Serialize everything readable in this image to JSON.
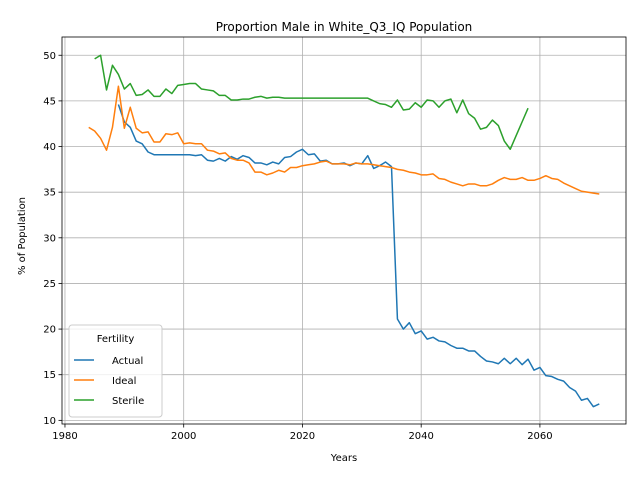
{
  "chart_data": {
    "type": "line",
    "title": "Proportion Male in White_Q3_IQ Population",
    "xlabel": "Years",
    "ylabel": "% of Population",
    "xlim": [
      1979.5,
      2074.5
    ],
    "ylim": [
      9.6,
      52.0
    ],
    "xticks": [
      1980,
      2000,
      2020,
      2040,
      2060
    ],
    "yticks": [
      10,
      15,
      20,
      25,
      30,
      35,
      40,
      45,
      50
    ],
    "grid": true,
    "legend": {
      "title": "Fertility",
      "placement": "lower-left"
    },
    "series": [
      {
        "name": "Actual",
        "color": "#1f77b4",
        "x": [
          1989,
          1990,
          1991,
          1992,
          1993,
          1994,
          1995,
          1996,
          1997,
          1998,
          1999,
          2000,
          2001,
          2002,
          2003,
          2004,
          2005,
          2006,
          2007,
          2008,
          2009,
          2010,
          2011,
          2012,
          2013,
          2014,
          2015,
          2016,
          2017,
          2018,
          2019,
          2020,
          2021,
          2022,
          2023,
          2024,
          2025,
          2026,
          2027,
          2028,
          2029,
          2030,
          2031,
          2032,
          2033,
          2034,
          2035,
          2036,
          2037,
          2038,
          2039,
          2040,
          2041,
          2042,
          2043,
          2044,
          2045,
          2046,
          2047,
          2048,
          2049,
          2050,
          2051,
          2052,
          2053,
          2054,
          2055,
          2056,
          2057,
          2058,
          2059,
          2060,
          2061,
          2062,
          2063,
          2064,
          2065,
          2066,
          2067,
          2068,
          2069,
          2070
        ],
        "y": [
          44.6,
          42.7,
          42.1,
          40.6,
          40.3,
          39.4,
          39.1,
          39.1,
          39.1,
          39.1,
          39.1,
          39.1,
          39.1,
          39.0,
          39.1,
          38.5,
          38.4,
          38.7,
          38.4,
          38.9,
          38.6,
          39.0,
          38.8,
          38.2,
          38.2,
          38.0,
          38.3,
          38.1,
          38.8,
          38.9,
          39.4,
          39.7,
          39.1,
          39.2,
          38.4,
          38.5,
          38.1,
          38.1,
          38.2,
          37.9,
          38.2,
          38.1,
          39.0,
          37.6,
          37.9,
          38.3,
          37.8,
          21.1,
          20.0,
          20.7,
          19.5,
          19.8,
          18.9,
          19.1,
          18.7,
          18.6,
          18.2,
          17.9,
          17.9,
          17.6,
          17.6,
          17.0,
          16.5,
          16.4,
          16.2,
          16.8,
          16.2,
          16.8,
          16.1,
          16.7,
          15.5,
          15.8,
          14.9,
          14.8,
          14.5,
          14.3,
          13.6,
          13.2,
          12.2,
          12.4,
          11.5,
          11.8
        ]
      },
      {
        "name": "Ideal",
        "color": "#ff7f0e",
        "x": [
          1984,
          1985,
          1986,
          1987,
          1988,
          1989,
          1990,
          1991,
          1992,
          1993,
          1994,
          1995,
          1996,
          1997,
          1998,
          1999,
          2000,
          2001,
          2002,
          2003,
          2004,
          2005,
          2006,
          2007,
          2008,
          2009,
          2010,
          2011,
          2012,
          2013,
          2014,
          2015,
          2016,
          2017,
          2018,
          2019,
          2020,
          2021,
          2022,
          2023,
          2024,
          2025,
          2026,
          2027,
          2028,
          2029,
          2030,
          2031,
          2032,
          2033,
          2034,
          2035,
          2036,
          2037,
          2038,
          2039,
          2040,
          2041,
          2042,
          2043,
          2044,
          2045,
          2046,
          2047,
          2048,
          2049,
          2050,
          2051,
          2052,
          2053,
          2054,
          2055,
          2056,
          2057,
          2058,
          2059,
          2060,
          2061,
          2062,
          2063,
          2064,
          2065,
          2066,
          2067,
          2068,
          2069,
          2070
        ],
        "y": [
          42.1,
          41.7,
          40.9,
          39.6,
          42.1,
          46.6,
          42.0,
          44.3,
          42.0,
          41.5,
          41.6,
          40.5,
          40.5,
          41.4,
          41.3,
          41.5,
          40.3,
          40.4,
          40.3,
          40.3,
          39.6,
          39.5,
          39.2,
          39.3,
          38.7,
          38.5,
          38.5,
          38.2,
          37.2,
          37.2,
          36.9,
          37.1,
          37.4,
          37.2,
          37.7,
          37.7,
          37.9,
          38.0,
          38.1,
          38.3,
          38.4,
          38.1,
          38.1,
          38.1,
          38.0,
          38.2,
          38.1,
          38.1,
          38.0,
          37.9,
          37.8,
          37.7,
          37.5,
          37.4,
          37.2,
          37.1,
          36.9,
          36.9,
          37.0,
          36.5,
          36.4,
          36.1,
          35.9,
          35.7,
          35.9,
          35.9,
          35.7,
          35.7,
          35.9,
          36.3,
          36.6,
          36.4,
          36.4,
          36.6,
          36.3,
          36.3,
          36.5,
          36.8,
          36.5,
          36.4,
          36.0,
          35.7,
          35.4,
          35.1,
          35.0,
          34.9,
          34.8
        ]
      },
      {
        "name": "Sterile",
        "color": "#2ca02c",
        "x": [
          1985,
          1986,
          1987,
          1988,
          1989,
          1990,
          1991,
          1992,
          1993,
          1994,
          1995,
          1996,
          1997,
          1998,
          1999,
          2000,
          2001,
          2002,
          2003,
          2004,
          2005,
          2006,
          2007,
          2008,
          2009,
          2010,
          2011,
          2012,
          2013,
          2014,
          2015,
          2016,
          2017,
          2018,
          2019,
          2020,
          2021,
          2022,
          2023,
          2024,
          2025,
          2026,
          2027,
          2028,
          2029,
          2030,
          2031,
          2032,
          2033,
          2034,
          2035,
          2036,
          2037,
          2038,
          2039,
          2040,
          2041,
          2042,
          2043,
          2044,
          2045,
          2046,
          2047,
          2048,
          2049,
          2050,
          2051,
          2052,
          2053,
          2054,
          2055,
          2056,
          2057,
          2058
        ],
        "y": [
          49.6,
          50.0,
          46.2,
          48.9,
          47.9,
          46.3,
          46.9,
          45.6,
          45.7,
          46.2,
          45.5,
          45.5,
          46.3,
          45.8,
          46.7,
          46.8,
          46.9,
          46.9,
          46.3,
          46.2,
          46.1,
          45.6,
          45.6,
          45.1,
          45.1,
          45.2,
          45.2,
          45.4,
          45.5,
          45.3,
          45.4,
          45.4,
          45.3,
          45.3,
          45.3,
          45.3,
          45.3,
          45.3,
          45.3,
          45.3,
          45.3,
          45.3,
          45.3,
          45.3,
          45.3,
          45.3,
          45.3,
          45.0,
          44.7,
          44.6,
          44.3,
          45.1,
          44.0,
          44.1,
          44.8,
          44.3,
          45.1,
          45.0,
          44.3,
          45.0,
          45.2,
          43.7,
          45.1,
          43.6,
          43.1,
          41.9,
          42.1,
          42.9,
          42.3,
          40.6,
          39.7,
          41.2,
          42.7,
          44.2
        ]
      }
    ]
  }
}
